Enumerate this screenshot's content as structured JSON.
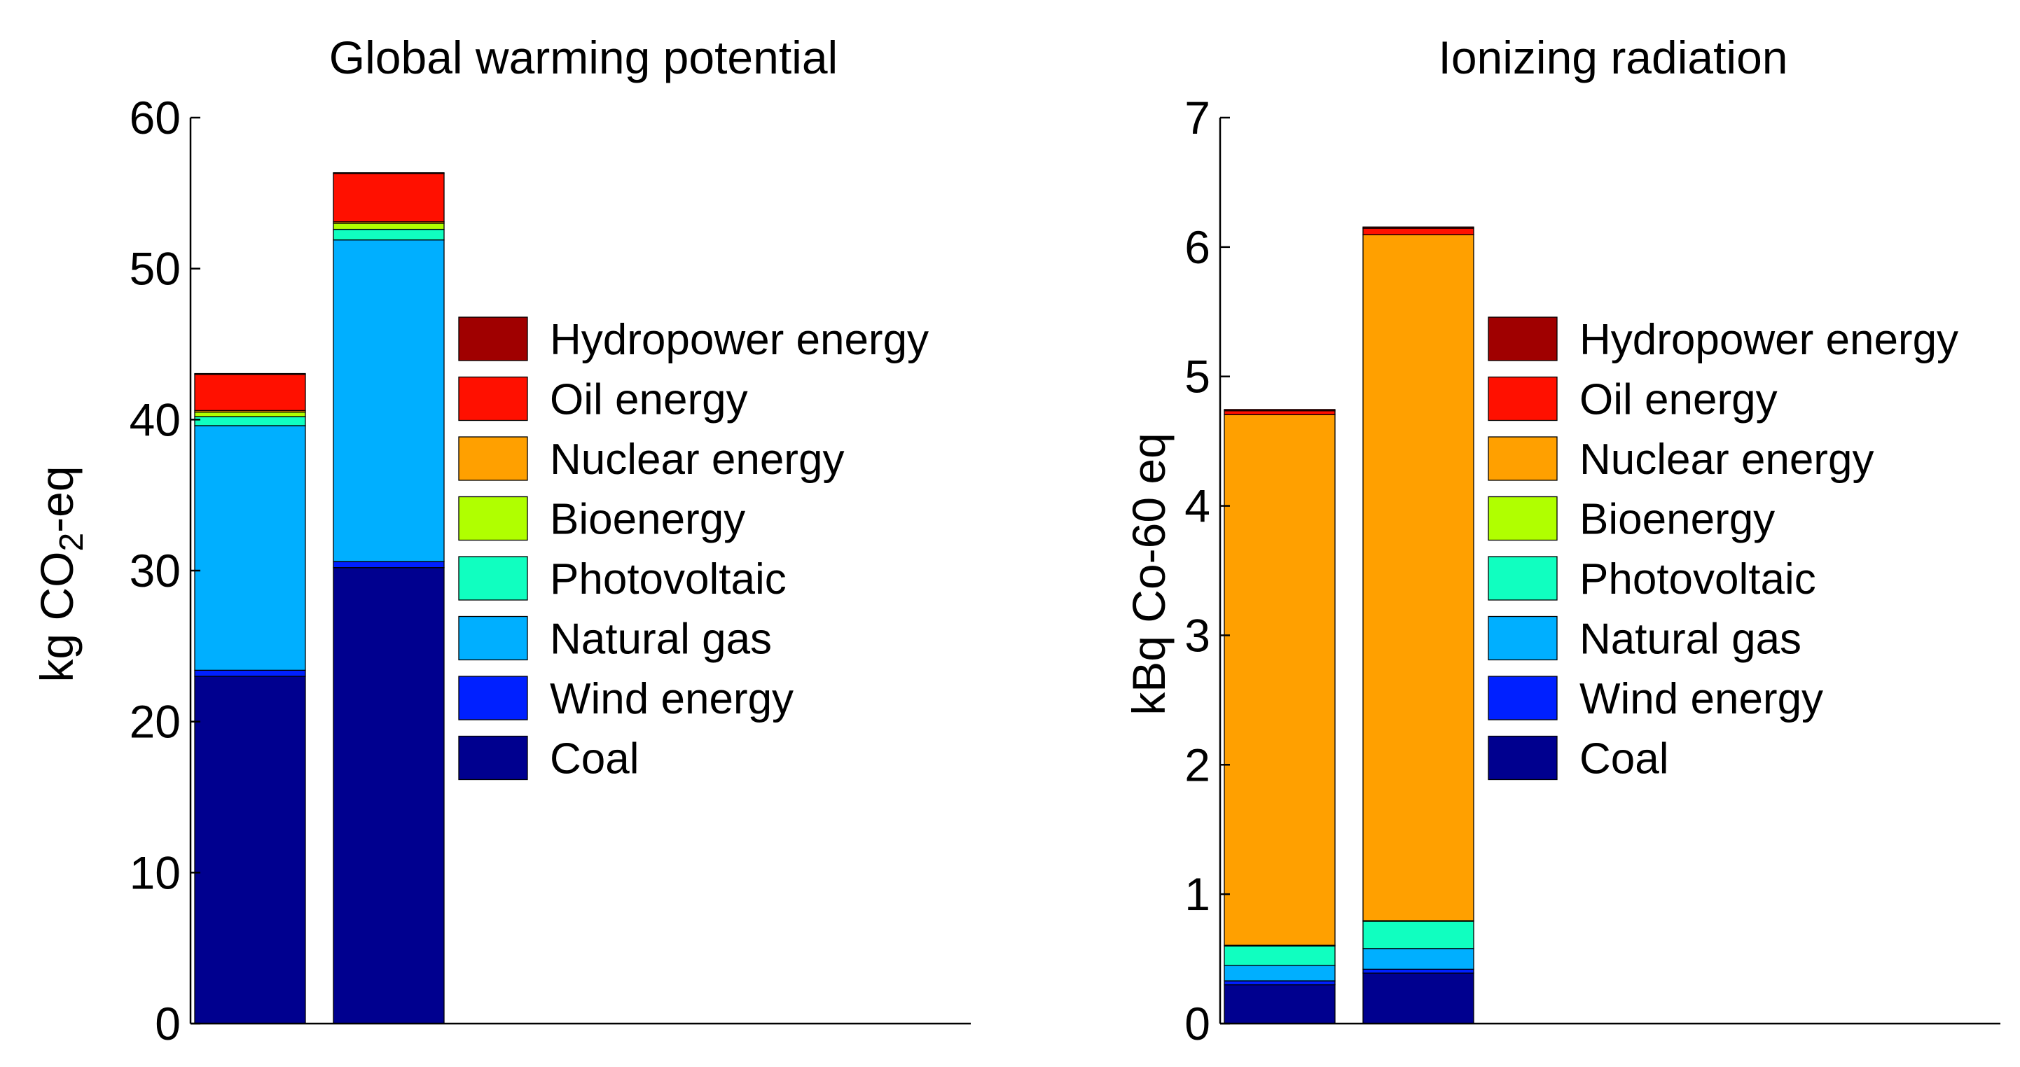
{
  "chart_data": [
    {
      "type": "bar",
      "stacked": true,
      "title": "Global warming potential",
      "ylabel_prefix": "kg CO",
      "ylabel_sub": "2",
      "ylabel_suffix": "-eq",
      "ylim": [
        0,
        60
      ],
      "yticks": [
        0,
        10,
        20,
        30,
        40,
        50,
        60
      ],
      "ytick_labels": [
        "0",
        "10",
        "20",
        "30",
        "40",
        "50",
        "60"
      ],
      "bars": 2,
      "series": [
        {
          "name": "Coal",
          "color": "#00008f",
          "values": [
            23.0,
            30.2
          ]
        },
        {
          "name": "Wind energy",
          "color": "#0020ff",
          "values": [
            0.4,
            0.4
          ]
        },
        {
          "name": "Natural gas",
          "color": "#00afff",
          "values": [
            16.2,
            21.3
          ]
        },
        {
          "name": "Photovoltaic",
          "color": "#10ffc0",
          "values": [
            0.6,
            0.7
          ]
        },
        {
          "name": "Bioenergy",
          "color": "#b0ff00",
          "values": [
            0.3,
            0.4
          ]
        },
        {
          "name": "Nuclear energy",
          "color": "#ffa000",
          "values": [
            0.1,
            0.1
          ]
        },
        {
          "name": "Oil energy",
          "color": "#ff1000",
          "values": [
            2.4,
            3.2
          ]
        },
        {
          "name": "Hydropower energy",
          "color": "#a00000",
          "values": [
            0.05,
            0.05
          ]
        }
      ]
    },
    {
      "type": "bar",
      "stacked": true,
      "title": "Ionizing radiation",
      "ylabel": "kBq Co-60 eq",
      "ylim": [
        0,
        7
      ],
      "yticks": [
        0,
        1,
        2,
        3,
        4,
        5,
        6,
        7
      ],
      "ytick_labels": [
        "0",
        "1",
        "2",
        "3",
        "4",
        "5",
        "6",
        "7"
      ],
      "bars": 2,
      "series": [
        {
          "name": "Coal",
          "color": "#00008f",
          "values": [
            0.3,
            0.39
          ]
        },
        {
          "name": "Wind energy",
          "color": "#0020ff",
          "values": [
            0.03,
            0.03
          ]
        },
        {
          "name": "Natural gas",
          "color": "#00afff",
          "values": [
            0.12,
            0.16
          ]
        },
        {
          "name": "Photovoltaic",
          "color": "#10ffc0",
          "values": [
            0.15,
            0.21
          ]
        },
        {
          "name": "Bioenergy",
          "color": "#b0ff00",
          "values": [
            0.005,
            0.005
          ]
        },
        {
          "name": "Nuclear energy",
          "color": "#ffa000",
          "values": [
            4.1,
            5.3
          ]
        },
        {
          "name": "Oil energy",
          "color": "#ff1000",
          "values": [
            0.03,
            0.05
          ]
        },
        {
          "name": "Hydropower energy",
          "color": "#a00000",
          "values": [
            0.01,
            0.01
          ]
        }
      ]
    }
  ]
}
